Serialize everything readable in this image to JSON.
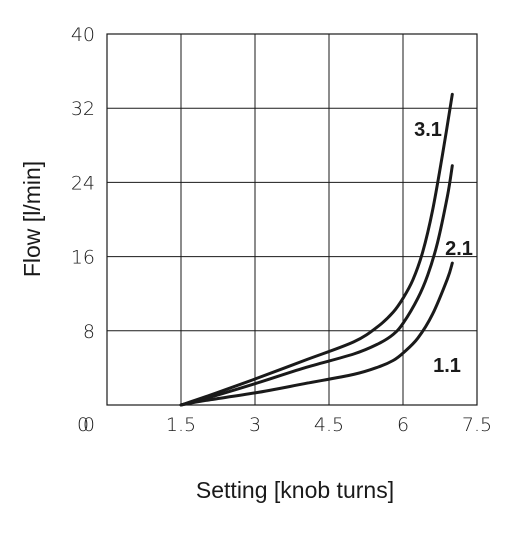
{
  "chart_data": {
    "type": "line",
    "xlabel": "Setting [knob turns]",
    "ylabel": "Flow [l/min]",
    "xlim": [
      0,
      7.5
    ],
    "ylim": [
      0,
      40
    ],
    "xticks": [
      0,
      1.5,
      3,
      4.5,
      6,
      7.5
    ],
    "yticks": [
      0,
      8,
      16,
      24,
      32,
      40
    ],
    "xtick_labels": [
      "0",
      "1.5",
      "3",
      "4.5",
      "6",
      "7.5"
    ],
    "ytick_labels": [
      "0",
      "8",
      "16",
      "24",
      "32",
      "40"
    ],
    "grid": true,
    "line_color": "#1a1a1a",
    "series": [
      {
        "name": "1.1",
        "x": [
          1.5,
          2.0,
          3.0,
          4.0,
          5.0,
          5.5,
          5.8,
          6.0,
          6.3,
          6.6,
          6.9,
          7.0
        ],
        "y": [
          0,
          0.5,
          1.3,
          2.3,
          3.3,
          4.1,
          4.8,
          5.6,
          7.2,
          9.8,
          13.6,
          15.3
        ]
      },
      {
        "name": "2.1",
        "x": [
          1.5,
          2.0,
          3.0,
          4.0,
          5.0,
          5.5,
          5.8,
          6.0,
          6.3,
          6.5,
          6.7,
          6.9,
          7.0
        ],
        "y": [
          0,
          0.7,
          2.3,
          4.0,
          5.5,
          6.6,
          7.6,
          8.8,
          11.5,
          14.0,
          17.5,
          22.5,
          25.8
        ]
      },
      {
        "name": "3.1",
        "x": [
          1.5,
          2.0,
          3.0,
          4.0,
          5.0,
          5.5,
          5.8,
          6.0,
          6.2,
          6.4,
          6.6,
          6.8,
          7.0
        ],
        "y": [
          0,
          0.9,
          2.8,
          4.8,
          6.8,
          8.5,
          10.0,
          11.5,
          13.5,
          16.5,
          21.0,
          27.0,
          33.5
        ]
      }
    ]
  }
}
